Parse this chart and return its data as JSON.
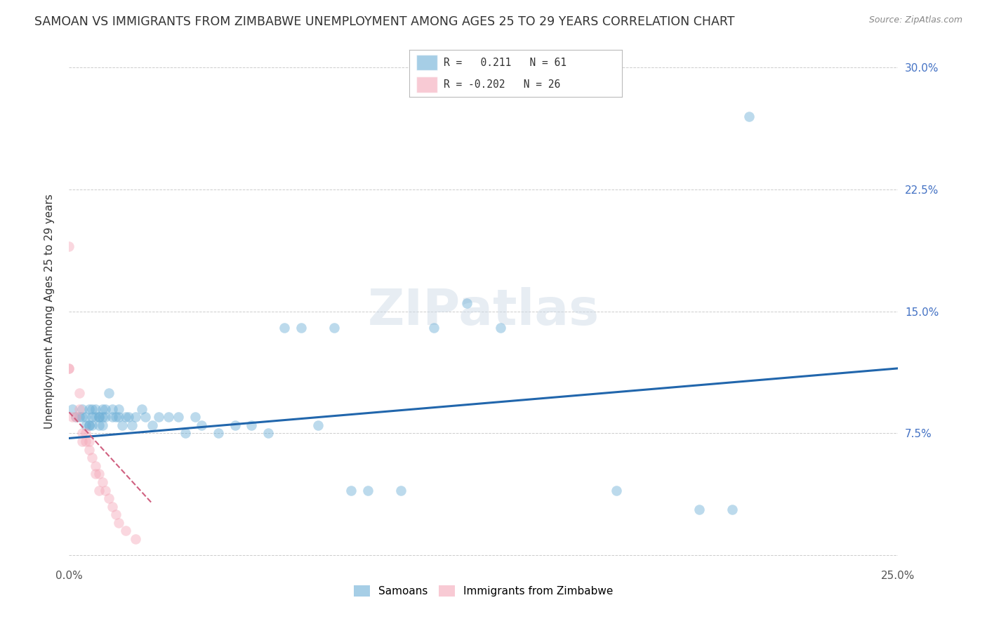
{
  "title": "SAMOAN VS IMMIGRANTS FROM ZIMBABWE UNEMPLOYMENT AMONG AGES 25 TO 29 YEARS CORRELATION CHART",
  "source": "Source: ZipAtlas.com",
  "ylabel": "Unemployment Among Ages 25 to 29 years",
  "xlim": [
    0.0,
    0.25
  ],
  "ylim": [
    -0.005,
    0.305
  ],
  "xticks": [
    0.0,
    0.05,
    0.1,
    0.15,
    0.2,
    0.25
  ],
  "yticks": [
    0.0,
    0.075,
    0.15,
    0.225,
    0.3
  ],
  "ytick_labels": [
    "",
    "7.5%",
    "15.0%",
    "22.5%",
    "30.0%"
  ],
  "xtick_labels": [
    "0.0%",
    "",
    "",
    "",
    "",
    "25.0%"
  ],
  "samoans_x": [
    0.001,
    0.002,
    0.003,
    0.004,
    0.004,
    0.005,
    0.005,
    0.006,
    0.006,
    0.006,
    0.007,
    0.007,
    0.007,
    0.008,
    0.008,
    0.009,
    0.009,
    0.009,
    0.01,
    0.01,
    0.01,
    0.011,
    0.011,
    0.012,
    0.013,
    0.013,
    0.014,
    0.015,
    0.015,
    0.016,
    0.017,
    0.018,
    0.019,
    0.02,
    0.022,
    0.023,
    0.025,
    0.027,
    0.03,
    0.033,
    0.035,
    0.038,
    0.04,
    0.045,
    0.05,
    0.055,
    0.06,
    0.065,
    0.07,
    0.075,
    0.08,
    0.085,
    0.09,
    0.1,
    0.11,
    0.12,
    0.13,
    0.165,
    0.19,
    0.2,
    0.205
  ],
  "samoans_y": [
    0.09,
    0.085,
    0.085,
    0.09,
    0.085,
    0.08,
    0.085,
    0.09,
    0.08,
    0.08,
    0.09,
    0.085,
    0.08,
    0.085,
    0.09,
    0.085,
    0.08,
    0.085,
    0.09,
    0.085,
    0.08,
    0.085,
    0.09,
    0.1,
    0.085,
    0.09,
    0.085,
    0.085,
    0.09,
    0.08,
    0.085,
    0.085,
    0.08,
    0.085,
    0.09,
    0.085,
    0.08,
    0.085,
    0.085,
    0.085,
    0.075,
    0.085,
    0.08,
    0.075,
    0.08,
    0.08,
    0.075,
    0.14,
    0.14,
    0.08,
    0.14,
    0.04,
    0.04,
    0.04,
    0.14,
    0.155,
    0.14,
    0.04,
    0.028,
    0.028,
    0.27
  ],
  "zimbabwe_x": [
    0.0,
    0.0,
    0.0,
    0.001,
    0.002,
    0.003,
    0.003,
    0.004,
    0.004,
    0.005,
    0.005,
    0.006,
    0.006,
    0.007,
    0.008,
    0.008,
    0.009,
    0.009,
    0.01,
    0.011,
    0.012,
    0.013,
    0.014,
    0.015,
    0.017,
    0.02
  ],
  "zimbabwe_y": [
    0.19,
    0.115,
    0.115,
    0.085,
    0.085,
    0.09,
    0.1,
    0.075,
    0.07,
    0.075,
    0.07,
    0.07,
    0.065,
    0.06,
    0.055,
    0.05,
    0.05,
    0.04,
    0.045,
    0.04,
    0.035,
    0.03,
    0.025,
    0.02,
    0.015,
    0.01
  ],
  "blue_line_x": [
    0.0,
    0.25
  ],
  "blue_line_y": [
    0.072,
    0.115
  ],
  "pink_line_x": [
    0.0,
    0.025
  ],
  "pink_line_y": [
    0.088,
    0.032
  ],
  "scatter_size": 110,
  "scatter_alpha": 0.45,
  "blue_color": "#6baed6",
  "pink_color": "#f4a8b8",
  "blue_line_color": "#2166ac",
  "pink_line_color": "#d06080",
  "background_color": "#ffffff",
  "grid_color": "#cccccc",
  "title_fontsize": 12.5,
  "axis_label_fontsize": 11,
  "tick_fontsize": 11,
  "right_tick_color": "#4472c4"
}
